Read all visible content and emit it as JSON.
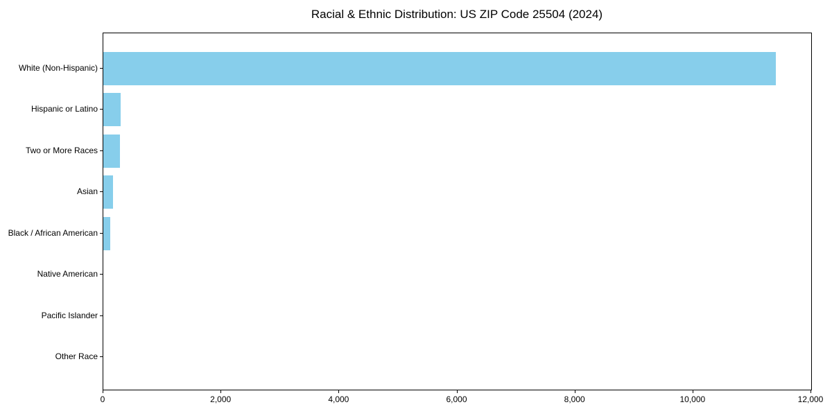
{
  "chart_data": {
    "type": "bar",
    "orientation": "horizontal",
    "title": "Racial & Ethnic Distribution: US ZIP Code 25504 (2024)",
    "categories": [
      "White (Non-Hispanic)",
      "Hispanic or Latino",
      "Two or More Races",
      "Asian",
      "Black / African American",
      "Native American",
      "Pacific Islander",
      "Other Race"
    ],
    "values": [
      11400,
      295,
      280,
      170,
      120,
      0,
      0,
      0
    ],
    "xlabel": "",
    "ylabel": "",
    "xlim": [
      0,
      12000
    ],
    "xticks": [
      0,
      2000,
      4000,
      6000,
      8000,
      10000,
      12000
    ],
    "xtick_labels": [
      "0",
      "2,000",
      "4,000",
      "6,000",
      "8,000",
      "10,000",
      "12,000"
    ],
    "bar_color": "#87CEEB",
    "axis_color": "#000000",
    "grid": false,
    "legend": null
  }
}
